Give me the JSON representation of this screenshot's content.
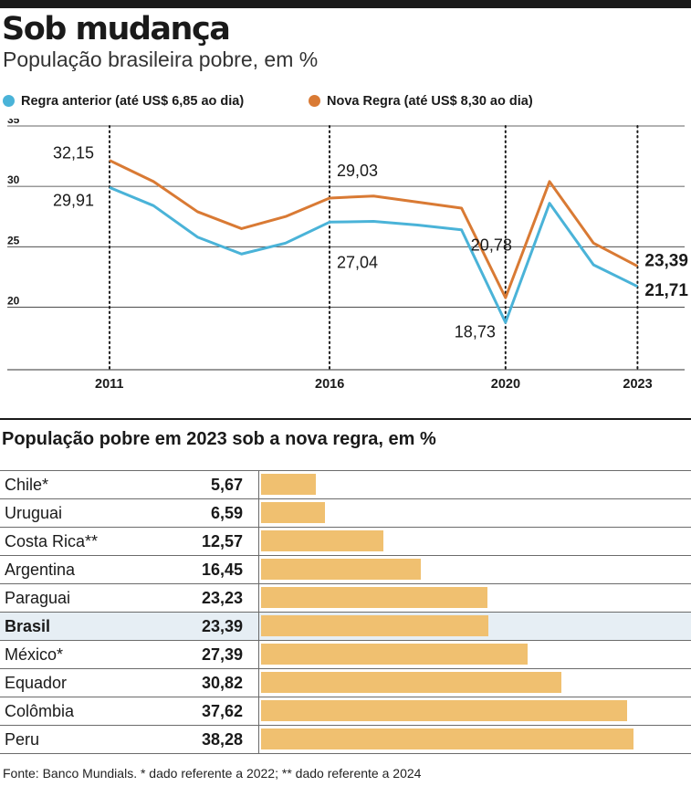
{
  "title": "Sob mudança",
  "subtitle": "População brasileira pobre, em %",
  "colors": {
    "regra_anterior": "#4ab3d8",
    "nova_regra": "#d97a34",
    "bar": "#f0c070",
    "highlight_row": "#e6eef4"
  },
  "chart_data": [
    {
      "type": "line",
      "x": [
        2011,
        2012,
        2013,
        2014,
        2015,
        2016,
        2017,
        2018,
        2019,
        2020,
        2021,
        2022,
        2023
      ],
      "series": [
        {
          "name": "Regra anterior (até US$ 6,85 ao dia)",
          "values": [
            29.91,
            28.4,
            25.8,
            24.4,
            25.3,
            27.04,
            27.1,
            26.8,
            26.4,
            18.73,
            28.6,
            23.5,
            21.71
          ]
        },
        {
          "name": "Nova Regra (até US$ 8,30 ao dia)",
          "values": [
            32.15,
            30.4,
            27.9,
            26.5,
            27.5,
            29.03,
            29.2,
            28.7,
            28.2,
            20.78,
            30.4,
            25.3,
            23.39
          ]
        }
      ],
      "ylim": [
        15,
        35
      ],
      "y_ticks": [
        "35",
        "30",
        "25",
        "20"
      ],
      "x_ticks": [
        "2011",
        "2016",
        "2020",
        "2023"
      ],
      "grid": true,
      "legend_position": "top",
      "annotations": [
        {
          "series": 1,
          "index": 0,
          "text": "32,15"
        },
        {
          "series": 0,
          "index": 0,
          "text": "29,91"
        },
        {
          "series": 1,
          "index": 5,
          "text": "29,03"
        },
        {
          "series": 0,
          "index": 5,
          "text": "27,04"
        },
        {
          "series": 1,
          "index": 9,
          "text": "20,78"
        },
        {
          "series": 0,
          "index": 9,
          "text": "18,73"
        },
        {
          "series": 1,
          "index": 12,
          "text": "23,39"
        },
        {
          "series": 0,
          "index": 12,
          "text": "21,71"
        }
      ]
    },
    {
      "type": "bar",
      "title": "População pobre em 2023 sob a nova regra, em %",
      "categories": [
        "Chile*",
        "Uruguai",
        "Costa Rica**",
        "Argentina",
        "Paraguai",
        "Brasil",
        "México*",
        "Equador",
        "Colômbia",
        "Peru"
      ],
      "values": [
        5.67,
        6.59,
        12.57,
        16.45,
        23.23,
        23.39,
        27.39,
        30.82,
        37.62,
        38.28
      ],
      "value_labels": [
        "5,67",
        "6,59",
        "12,57",
        "16,45",
        "23,23",
        "23,39",
        "27,39",
        "30,82",
        "37,62",
        "38,28"
      ],
      "highlight": "Brasil"
    }
  ],
  "source": "Fonte: Banco Mundials. * dado referente a 2022; ** dado referente a 2024"
}
